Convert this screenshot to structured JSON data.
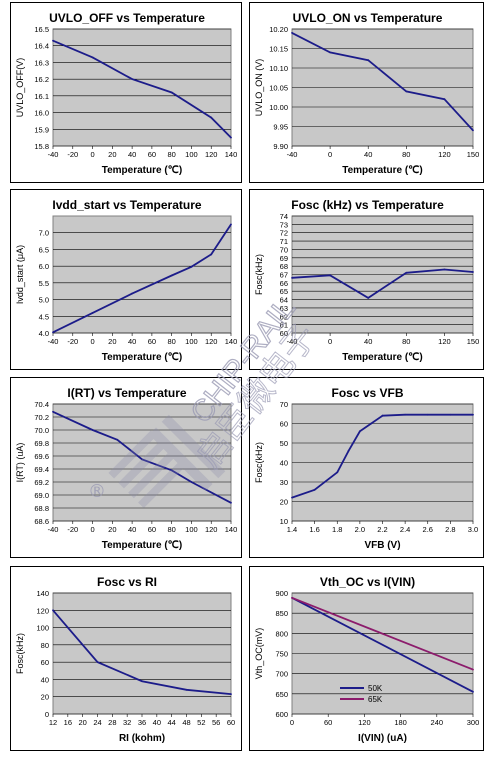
{
  "colors": {
    "plot_bg": "#c8c8c8",
    "grid": "#000000",
    "series_blue": "#1c1c8a",
    "series_purple": "#8c1c6c",
    "watermark": "#9a9ab4"
  },
  "watermark": {
    "text_latin": "CHIP-RAIL",
    "text_cjk": "启臣微电子",
    "mark": "®"
  },
  "chart_data": [
    {
      "type": "line",
      "title": "UVLO_OFF  vs Temperature",
      "xlabel": "Temperature (℃)",
      "ylabel": "UVLO_OFF(V)",
      "xlim": [
        -40,
        140
      ],
      "ylim": [
        15.8,
        16.5
      ],
      "xticks": [
        "-40",
        "-20",
        "0",
        "20",
        "40",
        "60",
        "80",
        "100",
        "120",
        "140"
      ],
      "yticks": [
        "15.8",
        "15.9",
        "16.0",
        "16.1",
        "16.2",
        "16.3",
        "16.4",
        "16.5"
      ],
      "series": [
        {
          "x": [
            -40,
            0,
            40,
            80,
            120,
            140
          ],
          "y": [
            16.43,
            16.33,
            16.2,
            16.12,
            15.97,
            15.85
          ]
        }
      ]
    },
    {
      "type": "line",
      "title": "UVLO_ON  vs Temperature",
      "xlabel": "Temperature (℃)",
      "ylabel": "UVLO_ON (V)",
      "xlim": [
        -40,
        150
      ],
      "ylim": [
        9.9,
        10.2
      ],
      "xticks": [
        "-40",
        "0",
        "40",
        "80",
        "120",
        "150"
      ],
      "yticks": [
        "9.90",
        "9.95",
        "10.00",
        "10.05",
        "10.10",
        "10.15",
        "10.20"
      ],
      "series": [
        {
          "x": [
            -40,
            0,
            40,
            80,
            120,
            150
          ],
          "y": [
            10.19,
            10.14,
            10.12,
            10.04,
            10.02,
            9.94
          ]
        }
      ]
    },
    {
      "type": "line",
      "title": "Ivdd_start  vs Temperature",
      "xlabel": "Temperature (℃)",
      "ylabel": "Ivdd_start (μA)",
      "xlim": [
        -40,
        140
      ],
      "ylim": [
        4.0,
        7.5
      ],
      "xticks": [
        "-40",
        "-20",
        "0",
        "20",
        "40",
        "60",
        "80",
        "100",
        "120",
        "140"
      ],
      "yticks": [
        "4.0",
        "4.5",
        "5.0",
        "5.5",
        "6.0",
        "6.5",
        "7.0"
      ],
      "series": [
        {
          "x": [
            -40,
            0,
            40,
            80,
            100,
            120,
            140
          ],
          "y": [
            4.02,
            4.6,
            5.18,
            5.72,
            5.98,
            6.35,
            7.25
          ]
        }
      ]
    },
    {
      "type": "line",
      "title": "Fosc (kHz)  vs Temperature",
      "xlabel": "Temperature (℃)",
      "ylabel": "Fosc(kHz)",
      "xlim": [
        -40,
        150
      ],
      "ylim": [
        60,
        74
      ],
      "xticks": [
        "-40",
        "0",
        "40",
        "80",
        "120",
        "150"
      ],
      "yticks": [
        "60",
        "61",
        "62",
        "63",
        "64",
        "65",
        "66",
        "67",
        "68",
        "69",
        "70",
        "71",
        "72",
        "73",
        "74"
      ],
      "series": [
        {
          "x": [
            -40,
            0,
            40,
            80,
            120,
            150
          ],
          "y": [
            66.6,
            66.9,
            64.2,
            67.2,
            67.6,
            67.3
          ]
        }
      ]
    },
    {
      "type": "line",
      "title": "I(RT)  vs Temperature",
      "xlabel": "Temperature (℃)",
      "ylabel": "I(RT) (uA)",
      "xlim": [
        -40,
        140
      ],
      "ylim": [
        68.6,
        70.4
      ],
      "xticks": [
        "-40",
        "-20",
        "0",
        "20",
        "40",
        "60",
        "80",
        "100",
        "120",
        "140"
      ],
      "yticks": [
        "68.6",
        "68.8",
        "69.0",
        "69.2",
        "69.4",
        "69.6",
        "69.8",
        "70.0",
        "70.2",
        "70.4"
      ],
      "series": [
        {
          "x": [
            -40,
            0,
            25,
            50,
            80,
            100,
            140
          ],
          "y": [
            70.28,
            70.0,
            69.85,
            69.55,
            69.38,
            69.2,
            68.88
          ]
        }
      ]
    },
    {
      "type": "line",
      "title": "Fosc vs  VFB",
      "xlabel": "VFB (V)",
      "ylabel": "Fosc(kHz)",
      "xlim": [
        1.4,
        3.0
      ],
      "ylim": [
        10,
        70
      ],
      "xticks": [
        "1.4",
        "1.6",
        "1.8",
        "2.0",
        "2.2",
        "2.4",
        "2.6",
        "2.8",
        "3.0"
      ],
      "yticks": [
        "10",
        "20",
        "30",
        "40",
        "50",
        "60",
        "70"
      ],
      "series": [
        {
          "x": [
            1.4,
            1.6,
            1.8,
            1.9,
            2.0,
            2.1,
            2.2,
            2.4,
            2.6,
            2.8,
            3.0
          ],
          "y": [
            22,
            26,
            35,
            46,
            56,
            60,
            64,
            64.5,
            64.5,
            64.5,
            64.5
          ]
        }
      ]
    },
    {
      "type": "line",
      "title": "Fosc vs  RI",
      "xlabel": "RI (kohm)",
      "ylabel": "Fosc(kHz)",
      "xlim": [
        12,
        60
      ],
      "ylim": [
        0,
        140
      ],
      "xticks": [
        "12",
        "16",
        "20",
        "24",
        "28",
        "32",
        "36",
        "40",
        "44",
        "48",
        "52",
        "56",
        "60"
      ],
      "yticks": [
        "0",
        "20",
        "40",
        "60",
        "80",
        "100",
        "120",
        "140"
      ],
      "series": [
        {
          "x": [
            12,
            24,
            36,
            48,
            60
          ],
          "y": [
            120,
            60,
            38,
            28,
            23
          ]
        }
      ]
    },
    {
      "type": "line",
      "title": "Vth_OC vs I(VIN)",
      "xlabel": "I(VIN) (uA)",
      "ylabel": "Vth_OC(mV)",
      "xlim": [
        0,
        300
      ],
      "ylim": [
        600,
        900
      ],
      "xticks": [
        "0",
        "60",
        "120",
        "180",
        "240",
        "300"
      ],
      "yticks": [
        "600",
        "650",
        "700",
        "750",
        "800",
        "850",
        "900"
      ],
      "legend": "inside-bottom-left",
      "series": [
        {
          "name": "50K",
          "x": [
            0,
            300
          ],
          "y": [
            888,
            655
          ]
        },
        {
          "name": "65K",
          "x": [
            0,
            300
          ],
          "y": [
            888,
            710
          ]
        }
      ]
    }
  ]
}
